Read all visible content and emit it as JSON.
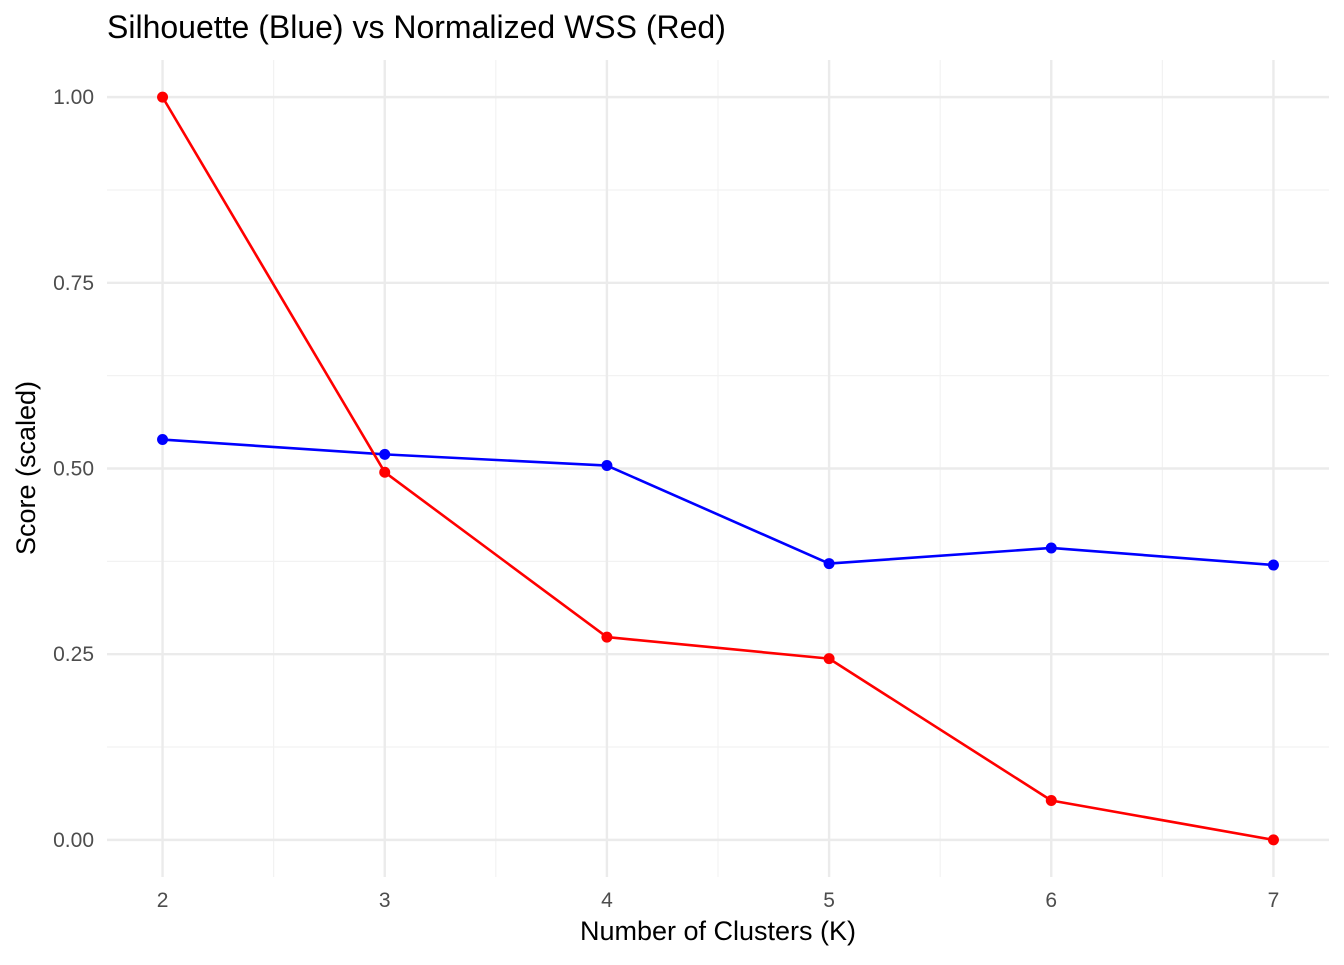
{
  "chart_data": {
    "type": "line",
    "title": "Silhouette (Blue) vs Normalized WSS (Red)",
    "xlabel": "Number of Clusters (K)",
    "ylabel": "Score (scaled)",
    "x": [
      2,
      3,
      4,
      5,
      6,
      7
    ],
    "xlim": [
      1.75,
      7.25
    ],
    "ylim": [
      -0.05,
      1.05
    ],
    "x_ticks": [
      2,
      3,
      4,
      5,
      6,
      7
    ],
    "x_tick_labels": [
      "2",
      "3",
      "4",
      "5",
      "6",
      "7"
    ],
    "y_ticks": [
      0.0,
      0.25,
      0.5,
      0.75,
      1.0
    ],
    "y_tick_labels": [
      "0.00",
      "0.25",
      "0.50",
      "0.75",
      "1.00"
    ],
    "grid": true,
    "legend": "none",
    "series": [
      {
        "color": "#0000ff",
        "values": [
          0.539,
          0.519,
          0.504,
          0.372,
          0.393,
          0.37
        ]
      },
      {
        "color": "#ff0000",
        "values": [
          1.0,
          0.495,
          0.273,
          0.244,
          0.053,
          0.0
        ]
      }
    ]
  }
}
